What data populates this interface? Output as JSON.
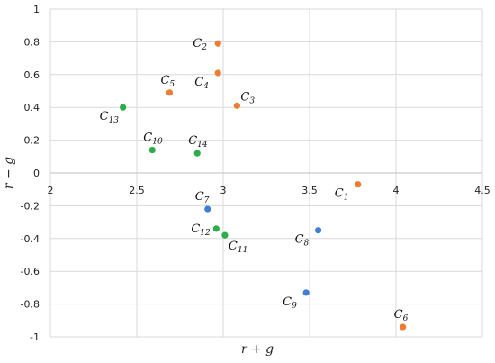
{
  "chart_data": {
    "type": "scatter",
    "xlabel": "r + g",
    "ylabel": "r − g",
    "xlim": [
      2,
      4.5
    ],
    "ylim": [
      -1,
      1
    ],
    "x_ticks": [
      2,
      2.5,
      3,
      3.5,
      4,
      4.5
    ],
    "x_tick_labels": [
      "2",
      "2.5",
      "3",
      "3.5",
      "4",
      "4.5"
    ],
    "y_ticks": [
      1,
      0.8,
      0.6,
      0.4,
      0.2,
      0,
      -0.2,
      -0.4,
      -0.6,
      -0.8,
      -1
    ],
    "y_tick_labels": [
      "1",
      "0.8",
      "0.6",
      "0.4",
      "0.2",
      "0",
      "-0.2",
      "-0.4",
      "-0.6",
      "-0.8",
      "-1"
    ],
    "grid": true,
    "colors": {
      "orange": "#ED7D31",
      "green": "#2EAB4B",
      "blue": "#3F7FD1",
      "grid": "#d9d9d9"
    },
    "points": [
      {
        "label": "C",
        "sub": "1",
        "x": 3.78,
        "y": -0.07,
        "color": "orange",
        "lab_pos": "bottom-left"
      },
      {
        "label": "C",
        "sub": "2",
        "x": 2.97,
        "y": 0.79,
        "color": "orange",
        "lab_pos": "left"
      },
      {
        "label": "C",
        "sub": "3",
        "x": 3.08,
        "y": 0.41,
        "color": "orange",
        "lab_pos": "top-right"
      },
      {
        "label": "C",
        "sub": "4",
        "x": 2.97,
        "y": 0.61,
        "color": "orange",
        "lab_pos": "bottom-left"
      },
      {
        "label": "C",
        "sub": "5",
        "x": 2.69,
        "y": 0.49,
        "color": "orange",
        "lab_pos": "top"
      },
      {
        "label": "C",
        "sub": "6",
        "x": 4.04,
        "y": -0.94,
        "color": "orange",
        "lab_pos": "top"
      },
      {
        "label": "C",
        "sub": "7",
        "x": 2.91,
        "y": -0.22,
        "color": "blue",
        "lab_pos": "top-left"
      },
      {
        "label": "C",
        "sub": "8",
        "x": 3.55,
        "y": -0.35,
        "color": "blue",
        "lab_pos": "bottom-left"
      },
      {
        "label": "C",
        "sub": "9",
        "x": 3.48,
        "y": -0.73,
        "color": "blue",
        "lab_pos": "bottom-left"
      },
      {
        "label": "C",
        "sub": "10",
        "x": 2.59,
        "y": 0.14,
        "color": "green",
        "lab_pos": "top"
      },
      {
        "label": "C",
        "sub": "11",
        "x": 3.01,
        "y": -0.38,
        "color": "green",
        "lab_pos": "bottom-right"
      },
      {
        "label": "C",
        "sub": "12",
        "x": 2.96,
        "y": -0.34,
        "color": "green",
        "lab_pos": "left"
      },
      {
        "label": "C",
        "sub": "13",
        "x": 2.42,
        "y": 0.4,
        "color": "green",
        "lab_pos": "bottom-left"
      },
      {
        "label": "C",
        "sub": "14",
        "x": 2.85,
        "y": 0.12,
        "color": "green",
        "lab_pos": "top"
      }
    ]
  }
}
